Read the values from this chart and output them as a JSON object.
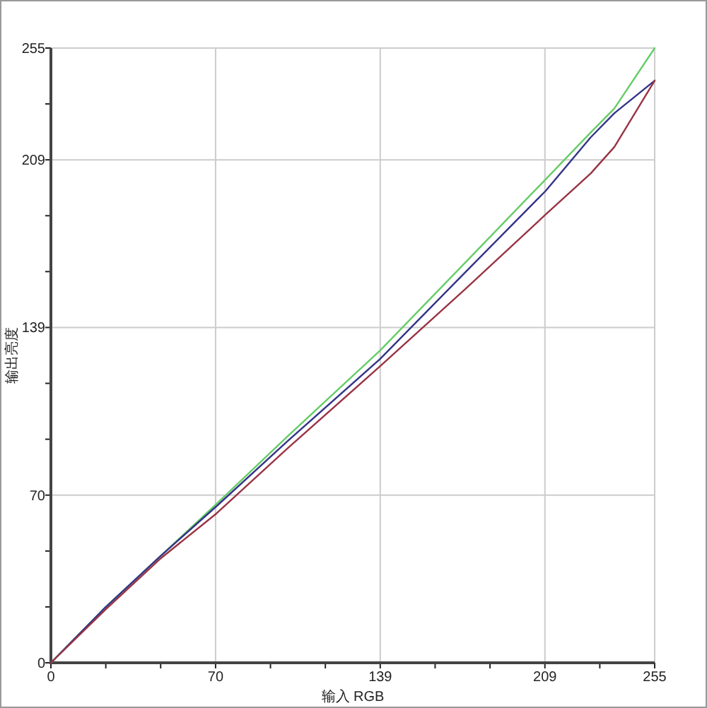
{
  "chart_data": {
    "type": "line",
    "xlabel": "输入 RGB",
    "ylabel": "输出亮度",
    "x": [
      0,
      23,
      46,
      70,
      100,
      139,
      175,
      209,
      228,
      238,
      255
    ],
    "xlim": [
      0,
      255
    ],
    "ylim": [
      0,
      255
    ],
    "xticks": [
      {
        "value": 0,
        "label": "0"
      },
      {
        "value": 23.18,
        "label": null
      },
      {
        "value": 46.36,
        "label": null
      },
      {
        "value": 69.55,
        "label": "70"
      },
      {
        "value": 92.73,
        "label": null
      },
      {
        "value": 115.91,
        "label": null
      },
      {
        "value": 139.09,
        "label": "139"
      },
      {
        "value": 162.27,
        "label": null
      },
      {
        "value": 185.45,
        "label": null
      },
      {
        "value": 208.64,
        "label": "209"
      },
      {
        "value": 231.82,
        "label": null
      },
      {
        "value": 255,
        "label": "255"
      }
    ],
    "yticks": [
      {
        "value": 0,
        "label": "0"
      },
      {
        "value": 23.18,
        "label": null
      },
      {
        "value": 46.36,
        "label": null
      },
      {
        "value": 69.55,
        "label": "70"
      },
      {
        "value": 92.73,
        "label": null
      },
      {
        "value": 115.91,
        "label": null
      },
      {
        "value": 139.09,
        "label": "139"
      },
      {
        "value": 162.27,
        "label": null
      },
      {
        "value": 185.45,
        "label": null
      },
      {
        "value": 208.64,
        "label": "209"
      },
      {
        "value": 231.82,
        "label": null
      },
      {
        "value": 255,
        "label": "255"
      }
    ],
    "grid": true,
    "marker": "none",
    "line_style": "solid",
    "series": [
      {
        "color": "#66cc66",
        "values": [
          0,
          23,
          44,
          66,
          94,
          129.5,
          166,
          200.6,
          220,
          230,
          255
        ]
      },
      {
        "color": "#333388",
        "values": [
          0,
          23,
          44,
          65,
          92,
          126,
          162,
          195.8,
          218,
          228,
          241.5
        ]
      },
      {
        "color": "#993344",
        "values": [
          0,
          22,
          43,
          62,
          89,
          123,
          155,
          186,
          203,
          214,
          241.5
        ]
      }
    ]
  }
}
